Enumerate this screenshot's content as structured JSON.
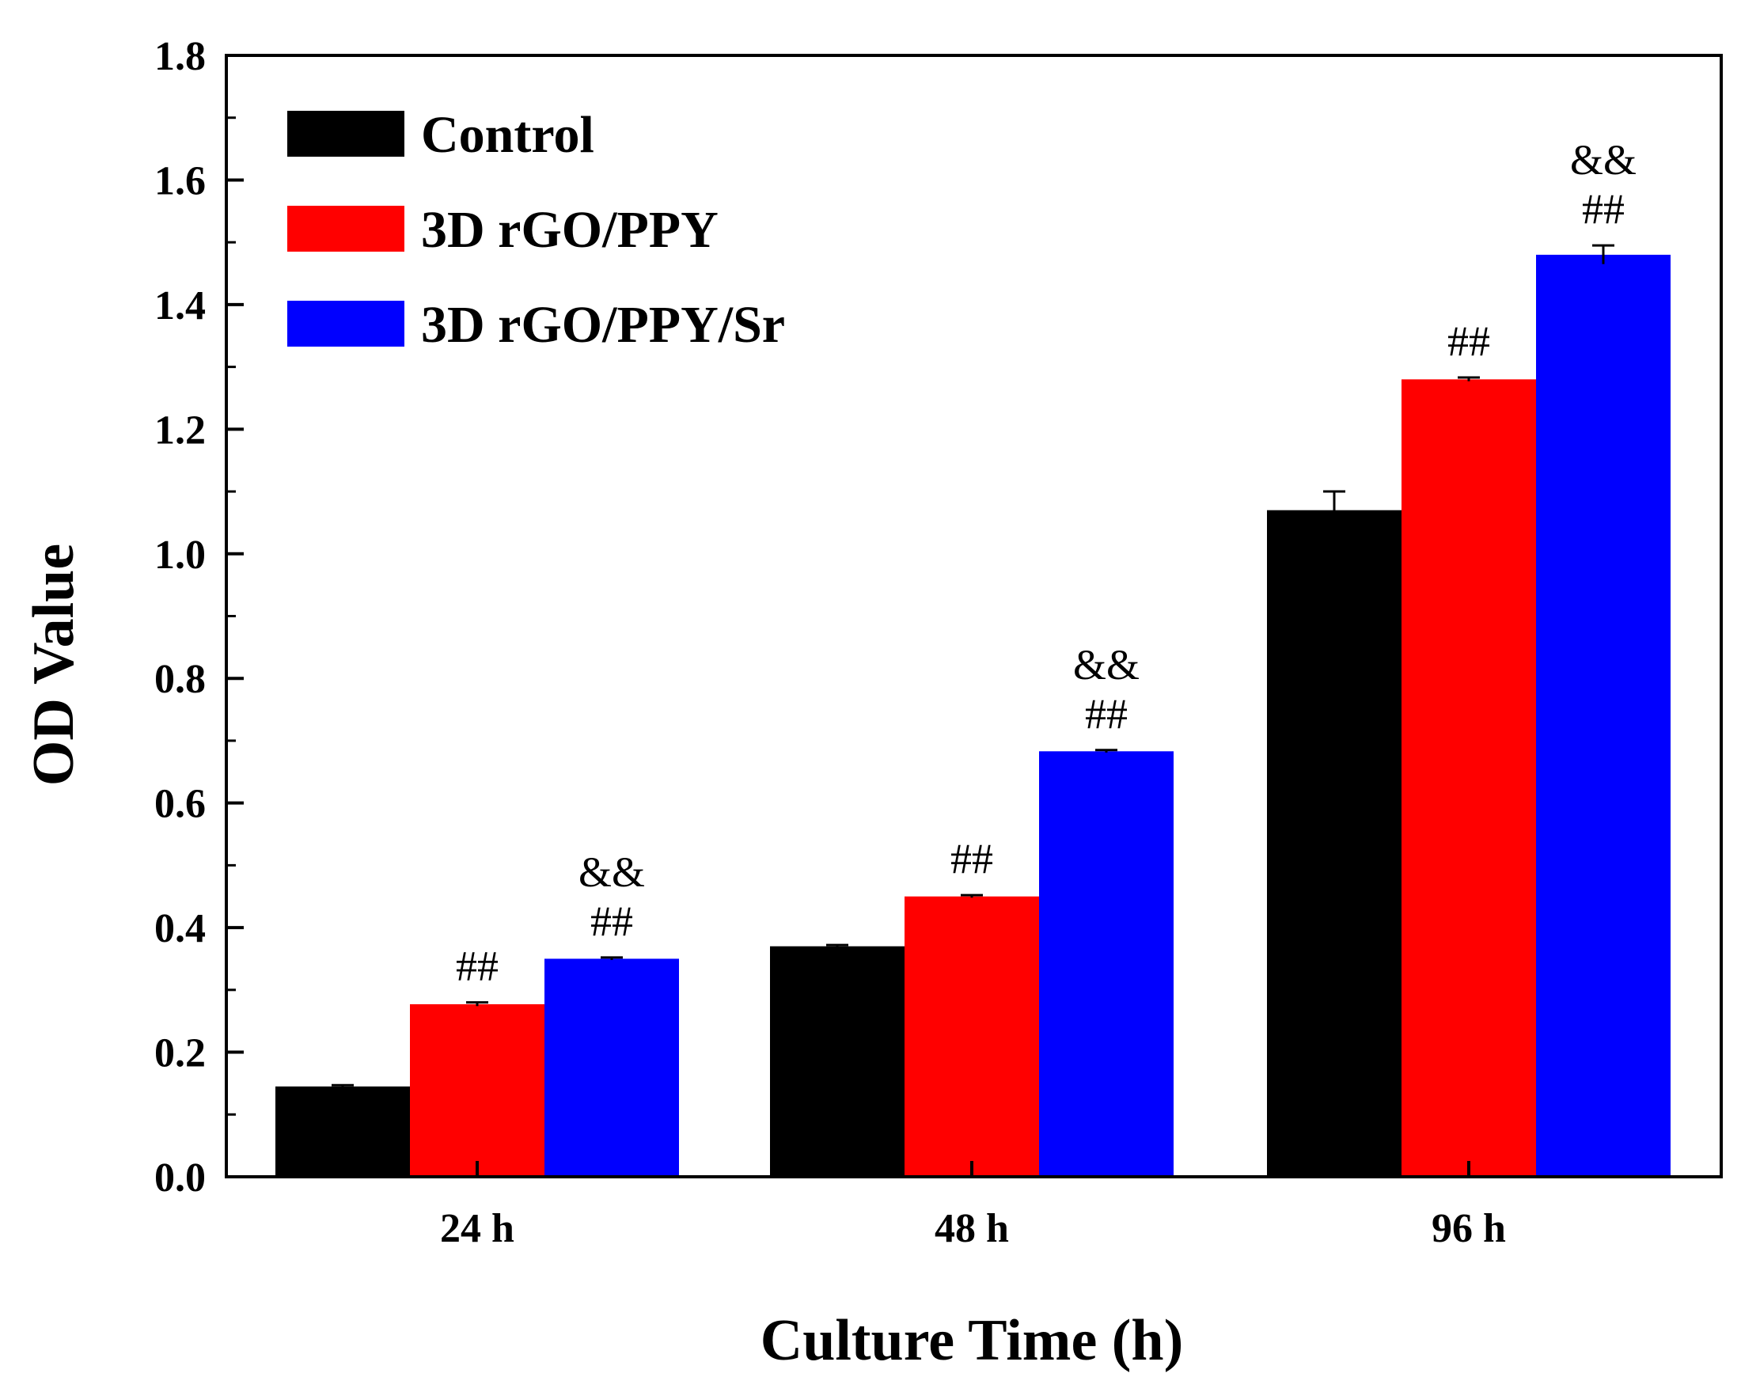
{
  "chart_data": {
    "type": "bar",
    "xlabel": "Culture Time (h)",
    "ylabel": "OD Value",
    "categories": [
      "24 h",
      "48 h",
      "96 h"
    ],
    "ylim": [
      0.0,
      1.8
    ],
    "yticks": [
      "0.0",
      "0.2",
      "0.4",
      "0.6",
      "0.8",
      "1.0",
      "1.2",
      "1.4",
      "1.6",
      "1.8"
    ],
    "legend_position": "top-left",
    "grid": false,
    "series": [
      {
        "name": "Control",
        "color": "#000000",
        "values": [
          0.145,
          0.37,
          1.07
        ],
        "errors": [
          0.002,
          0.002,
          0.03
        ],
        "annotations": [
          [],
          [],
          []
        ]
      },
      {
        "name": "3D rGO/PPY",
        "color": "#ff0000",
        "values": [
          0.277,
          0.45,
          1.28
        ],
        "errors": [
          0.003,
          0.002,
          0.003
        ],
        "annotations": [
          [
            "##"
          ],
          [
            "##"
          ],
          [
            "##"
          ]
        ]
      },
      {
        "name": "3D rGO/PPY/Sr",
        "color": "#0000ff",
        "values": [
          0.35,
          0.683,
          1.48
        ],
        "errors": [
          0.002,
          0.002,
          0.015
        ],
        "annotations": [
          [
            "&&",
            "##"
          ],
          [
            "&&",
            "##"
          ],
          [
            "&&",
            "##"
          ]
        ]
      }
    ]
  }
}
